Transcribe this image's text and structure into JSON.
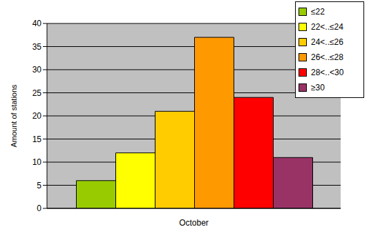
{
  "chart_data": {
    "type": "bar",
    "categories": [
      "October"
    ],
    "series": [
      {
        "name": "≤22",
        "color": "#99cc00",
        "values": [
          6
        ]
      },
      {
        "name": "22<..≤24",
        "color": "#ffff00",
        "values": [
          12
        ]
      },
      {
        "name": "24<..≤26",
        "color": "#ffcc00",
        "values": [
          21
        ]
      },
      {
        "name": "26<..≤28",
        "color": "#ff9900",
        "values": [
          37
        ]
      },
      {
        "name": "28<..<30",
        "color": "#ff0000",
        "values": [
          24
        ]
      },
      {
        "name": "≥30",
        "color": "#993366",
        "values": [
          11
        ]
      }
    ],
    "y_label": "Amount of stations",
    "ylim": [
      0,
      40
    ],
    "yticks": [
      0,
      5,
      10,
      15,
      20,
      25,
      30,
      35,
      40
    ],
    "grid": true,
    "legend": "upper right"
  }
}
